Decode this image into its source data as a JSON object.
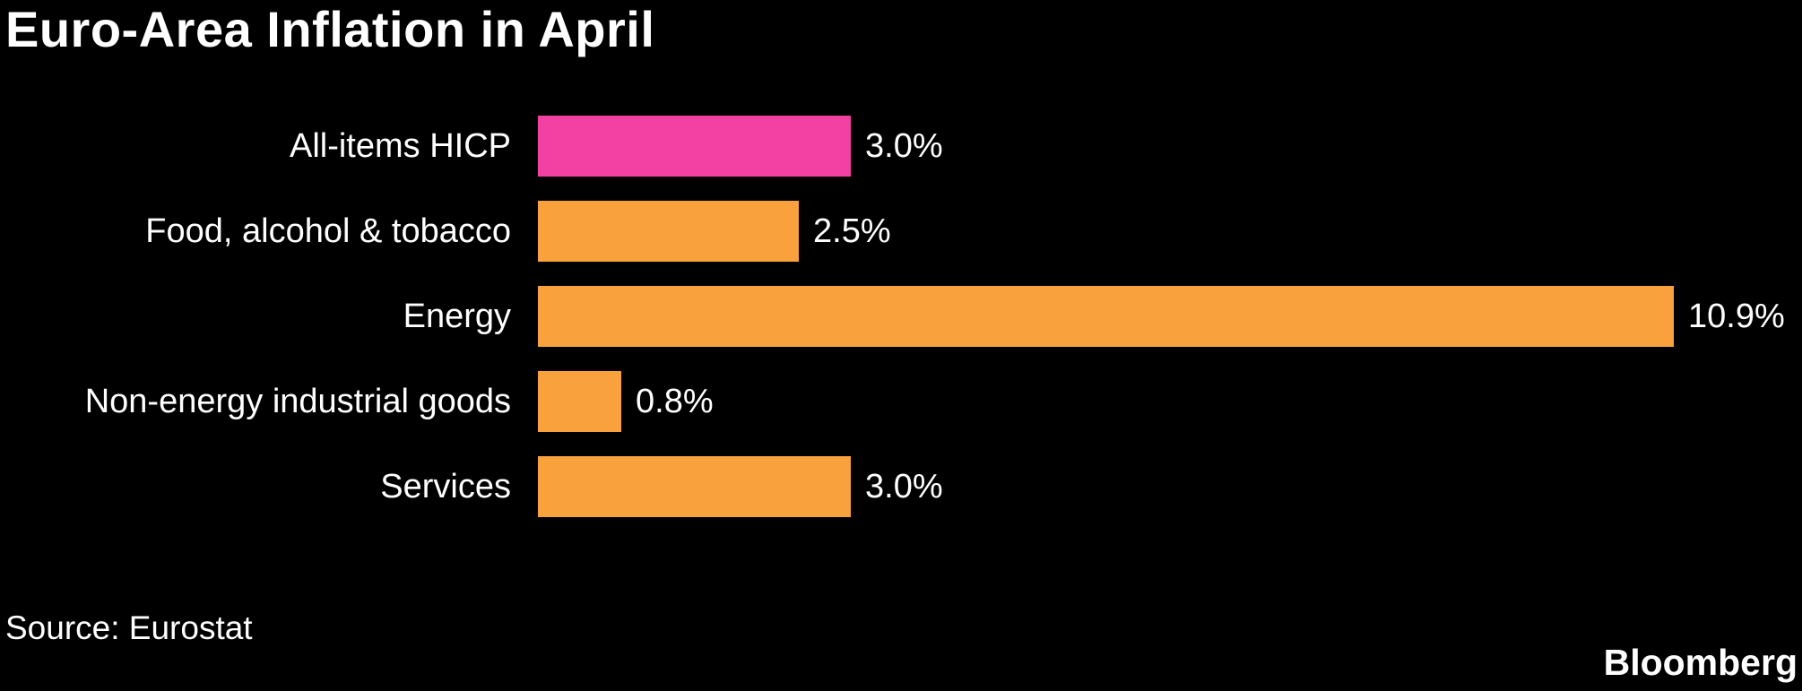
{
  "header": {
    "title": "Euro-Area Inflation in April"
  },
  "footer": {
    "source": "Source: Eurostat",
    "brand": "Bloomberg"
  },
  "colors": {
    "background": "#000000",
    "text": "#ffffff",
    "highlight_pink": "#f341a3",
    "orange": "#f9a23d"
  },
  "chart_data": {
    "type": "bar",
    "orientation": "horizontal",
    "title": "Euro-Area Inflation in April",
    "source": "Source: Eurostat",
    "unit": "%",
    "xlim": [
      0,
      10.9
    ],
    "grid": false,
    "legend": false,
    "categories": [
      "All-items HICP",
      "Food, alcohol & tobacco",
      "Energy",
      "Non-energy industrial goods",
      "Services"
    ],
    "values": [
      3.0,
      2.5,
      10.9,
      0.8,
      3.0
    ],
    "value_labels": [
      "3.0%",
      "2.5%",
      "10.9%",
      "0.8%",
      "3.0%"
    ],
    "bar_colors": [
      "#f341a3",
      "#f9a23d",
      "#f9a23d",
      "#f9a23d",
      "#f9a23d"
    ]
  }
}
